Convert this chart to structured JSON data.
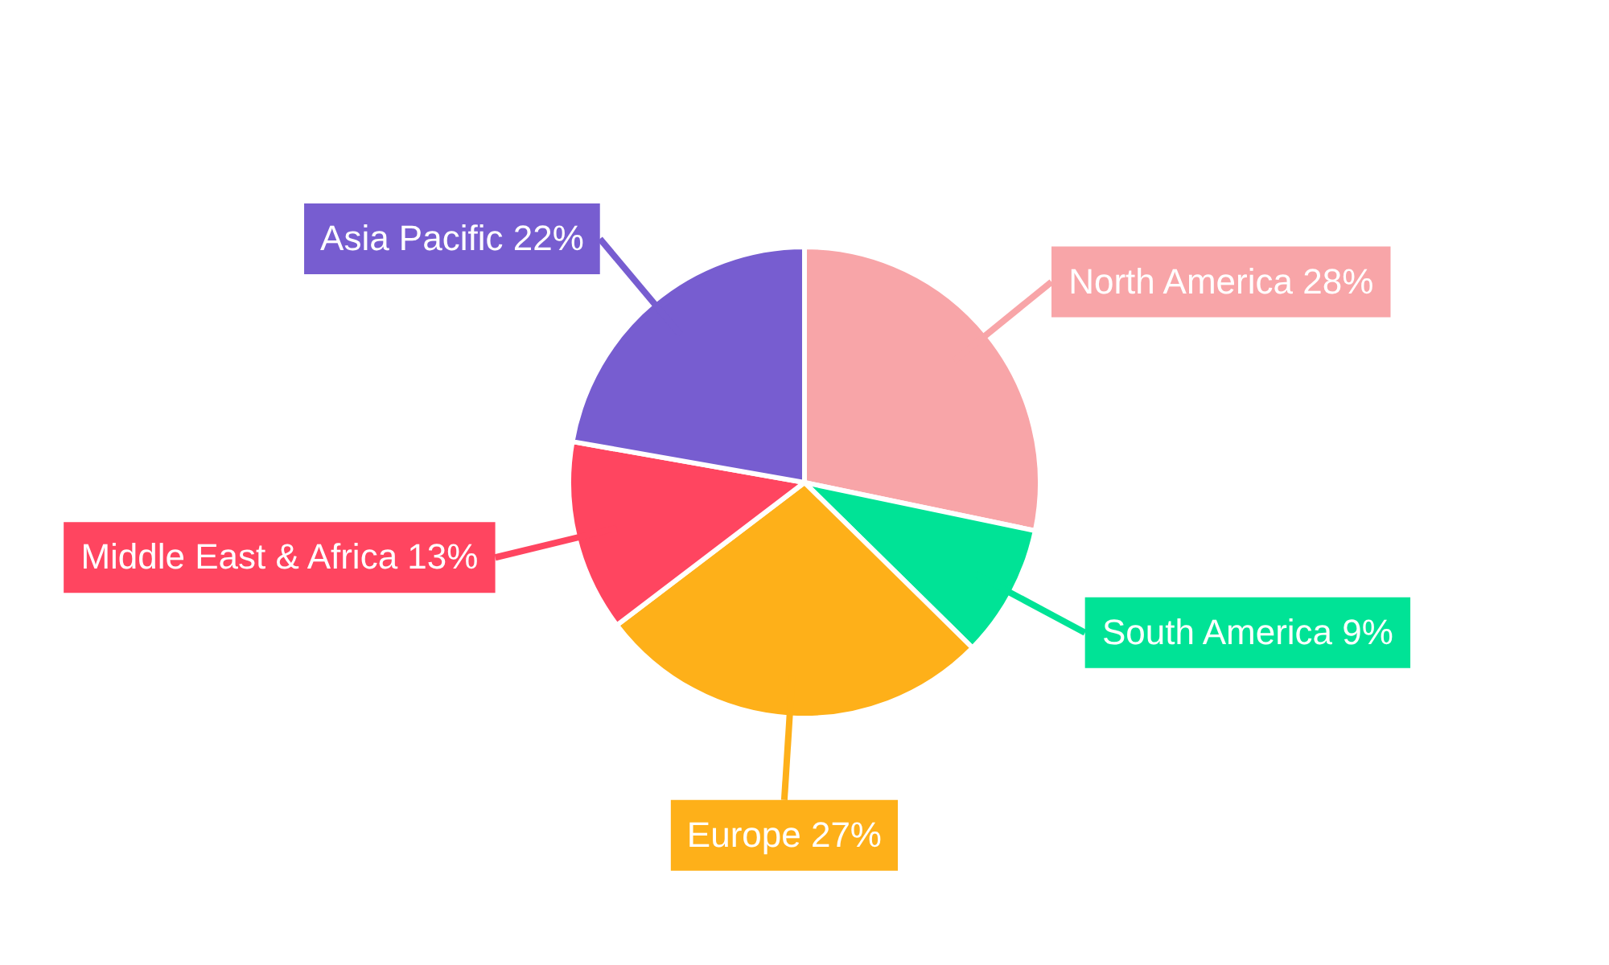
{
  "chart_data": {
    "type": "pie",
    "categories": [
      "North America",
      "South America",
      "Europe",
      "Middle East & Africa",
      "Asia Pacific"
    ],
    "values": [
      28,
      9,
      27,
      13,
      22
    ],
    "colors": [
      "#f8a5a8",
      "#00e396",
      "#feb019",
      "#ff4560",
      "#775dd0"
    ],
    "value_labels": [
      "28%",
      "9%",
      "27%",
      "13%",
      "22%"
    ],
    "legend": false
  }
}
